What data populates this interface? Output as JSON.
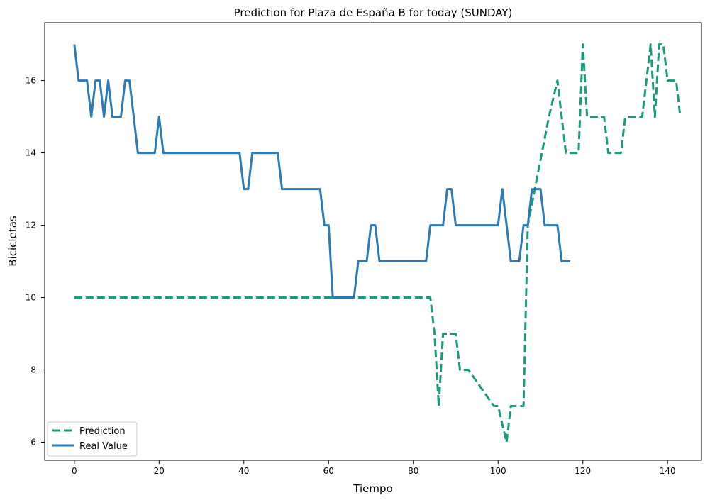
{
  "chart_data": {
    "type": "line",
    "title": "Prediction for Plaza de España B for today (SUNDAY)",
    "xlabel": "Tiempo",
    "ylabel": "Bicicletas",
    "xlim": [
      -7,
      148
    ],
    "ylim": [
      5.5,
      17.6
    ],
    "xticks": [
      0,
      20,
      40,
      60,
      80,
      100,
      120,
      140
    ],
    "yticks": [
      6,
      8,
      10,
      12,
      14,
      16
    ],
    "grid": false,
    "legend_position": "lower left",
    "series": [
      {
        "name": "Prediction",
        "color": "#179c7d",
        "style": "dashed",
        "x": [
          0,
          84,
          85,
          86,
          87,
          90,
          91,
          93,
          99,
          100,
          102,
          103,
          106,
          107,
          112,
          114,
          116,
          119,
          120,
          121,
          125,
          126,
          129,
          130,
          134,
          136,
          137,
          138,
          139,
          140,
          142,
          143
        ],
        "y": [
          10,
          10,
          9,
          7,
          9,
          9,
          8,
          8,
          7,
          7,
          6,
          7,
          7,
          12,
          15,
          16,
          14,
          14,
          17,
          15,
          15,
          14,
          14,
          15,
          15,
          17,
          15,
          17,
          17,
          16,
          16,
          15
        ]
      },
      {
        "name": "Real Value",
        "color": "#2b7bb9",
        "style": "solid",
        "x": [
          0,
          1,
          2,
          3,
          4,
          5,
          6,
          7,
          8,
          9,
          10,
          11,
          12,
          13,
          14,
          15,
          16,
          17,
          18,
          19,
          20,
          21,
          22,
          39,
          40,
          41,
          42,
          48,
          49,
          58,
          59,
          60,
          61,
          65,
          66,
          67,
          68,
          69,
          70,
          71,
          72,
          83,
          84,
          87,
          88,
          89,
          90,
          100,
          101,
          102,
          103,
          104,
          105,
          106,
          107,
          108,
          109,
          110,
          111,
          112,
          113,
          114,
          115,
          116,
          117
        ],
        "y": [
          17,
          16,
          16,
          16,
          15,
          16,
          16,
          15,
          16,
          15,
          15,
          15,
          16,
          16,
          15,
          14,
          14,
          14,
          14,
          14,
          15,
          14,
          14,
          14,
          13,
          13,
          14,
          14,
          13,
          13,
          12,
          12,
          10,
          10,
          10,
          11,
          11,
          11,
          12,
          12,
          11,
          11,
          12,
          12,
          13,
          13,
          12,
          12,
          13,
          12,
          11,
          11,
          11,
          12,
          12,
          13,
          13,
          13,
          12,
          12,
          12,
          12,
          11,
          11,
          11
        ]
      }
    ]
  }
}
